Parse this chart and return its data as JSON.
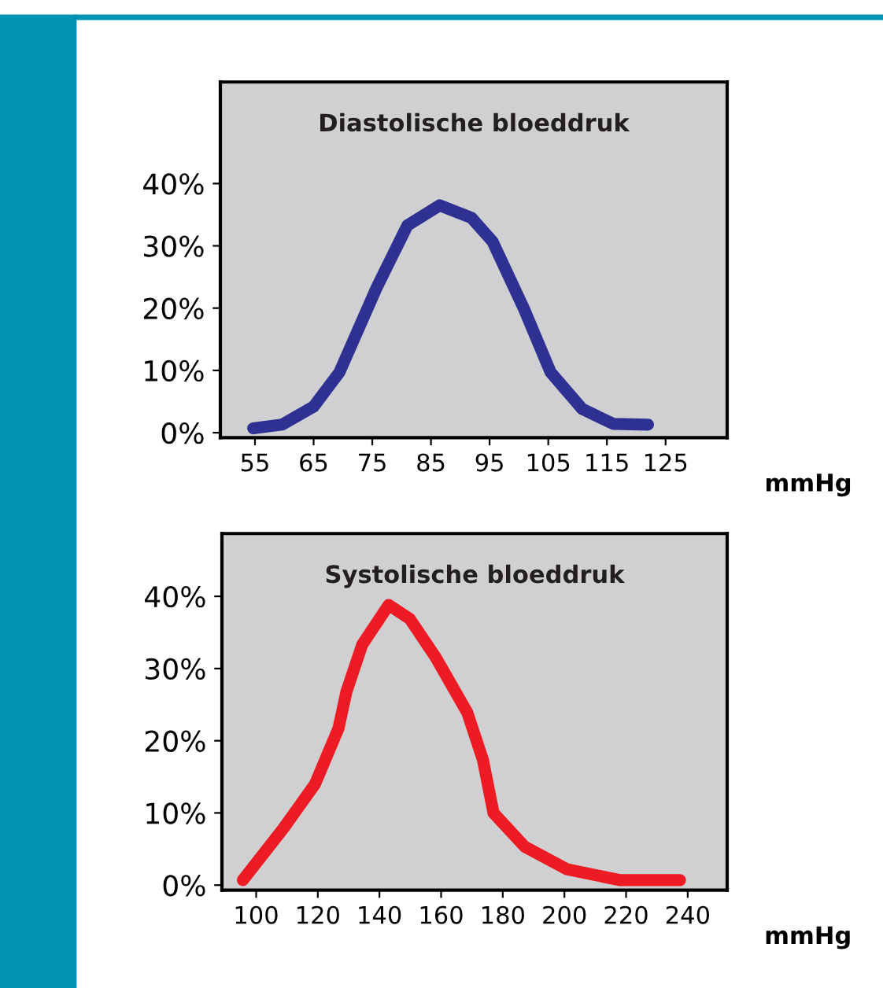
{
  "chart_data": [
    {
      "type": "line",
      "title": "Diastolische bloeddruk",
      "xlabel": "mmHg",
      "x": [
        54.7,
        59.6,
        65,
        69.4,
        75.7,
        81,
        86.5,
        91.9,
        95.5,
        100.9,
        105.4,
        110.8,
        116.1,
        122
      ],
      "series": [
        {
          "color": "#2e3192",
          "values": [
            0.7,
            1.3,
            4.2,
            9.7,
            23.2,
            33.3,
            36.5,
            34.5,
            30.7,
            19.8,
            9.7,
            3.8,
            1.4,
            1.3
          ]
        }
      ],
      "xlim": [
        49.1,
        135.5
      ],
      "ylim": [
        -0.8,
        56.3
      ],
      "xticks": [
        55,
        65,
        75,
        85,
        95,
        105,
        115,
        125
      ],
      "yticks": [
        {
          "value": 0,
          "label": "0%"
        },
        {
          "value": 10,
          "label": "10%"
        },
        {
          "value": 20,
          "label": "20%"
        },
        {
          "value": 30,
          "label": "30%"
        },
        {
          "value": 40,
          "label": "40%"
        }
      ],
      "grid": false,
      "marker": "none",
      "line_style": "solid"
    },
    {
      "type": "line",
      "title": "Systolische bloeddruk",
      "xlabel": "mmHg",
      "x": [
        95.7,
        108.9,
        119.1,
        126.7,
        129.3,
        134.4,
        143,
        149.8,
        158.3,
        168.5,
        173.6,
        177,
        187.2,
        200.8,
        217.9,
        237.5
      ],
      "series": [
        {
          "color": "#ed1c24",
          "values": [
            0.7,
            7.9,
            14,
            21.7,
            26.8,
            33.3,
            38.8,
            36.9,
            31.5,
            23.9,
            17.3,
            10,
            5.3,
            2.2,
            0.7,
            0.7
          ]
        }
      ],
      "xlim": [
        88.9,
        252.8
      ],
      "ylim": [
        -0.7,
        48.7
      ],
      "xticks": [
        100,
        120,
        140,
        160,
        180,
        200,
        220,
        240
      ],
      "yticks": [
        {
          "value": 0,
          "label": "0%"
        },
        {
          "value": 10,
          "label": "10%"
        },
        {
          "value": 20,
          "label": "20%"
        },
        {
          "value": 30,
          "label": "30%"
        },
        {
          "value": 40,
          "label": "40%"
        }
      ],
      "grid": false,
      "marker": "none",
      "line_style": "solid"
    }
  ]
}
